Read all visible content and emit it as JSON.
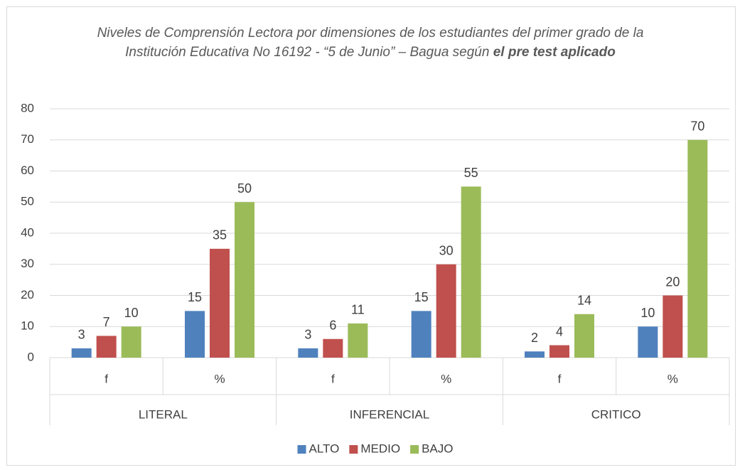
{
  "chart_data": {
    "type": "bar",
    "title": "Niveles de Comprensión Lectora por dimensiones de los estudiantes del primer grado de la Institución Educativa No 16192 - “5 de Junio” – Bagua según",
    "title_bold": "el pre test aplicado",
    "groups": [
      "LITERAL",
      "INFERENCIAL",
      "CRITICO"
    ],
    "categories": [
      "f",
      "%",
      "f",
      "%",
      "f",
      "%"
    ],
    "series": [
      {
        "name": "ALTO",
        "color": "#4f81bd",
        "values": [
          3,
          15,
          3,
          15,
          2,
          10
        ]
      },
      {
        "name": "MEDIO",
        "color": "#c0504d",
        "values": [
          7,
          35,
          6,
          30,
          4,
          20
        ]
      },
      {
        "name": "BAJO",
        "color": "#9bbb59",
        "values": [
          10,
          50,
          11,
          55,
          14,
          70
        ]
      }
    ],
    "ylim": [
      0,
      80
    ],
    "yticks": [
      0,
      10,
      20,
      30,
      40,
      50,
      60,
      70,
      80
    ],
    "grid": true,
    "legend": "bottom"
  }
}
